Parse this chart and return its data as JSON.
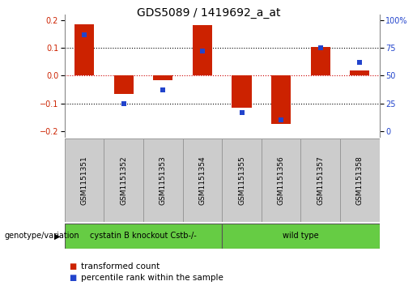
{
  "title": "GDS5089 / 1419692_a_at",
  "samples": [
    "GSM1151351",
    "GSM1151352",
    "GSM1151353",
    "GSM1151354",
    "GSM1151355",
    "GSM1151356",
    "GSM1151357",
    "GSM1151358"
  ],
  "red_values": [
    0.185,
    -0.065,
    -0.015,
    0.182,
    -0.115,
    -0.175,
    0.103,
    0.02
  ],
  "blue_percentile": [
    87,
    25,
    37,
    72,
    17,
    10,
    75,
    62
  ],
  "ylim": [
    -0.22,
    0.22
  ],
  "yticks_left": [
    -0.2,
    -0.1,
    0.0,
    0.1,
    0.2
  ],
  "yticks_right_vals": [
    -0.2,
    -0.1,
    0.0,
    0.1,
    0.2
  ],
  "yticks_right_labels": [
    "0",
    "25",
    "50",
    "75",
    "100%"
  ],
  "group1_label": "cystatin B knockout Cstb-/-",
  "group2_label": "wild type",
  "legend_red": "transformed count",
  "legend_blue": "percentile rank within the sample",
  "genotype_label": "genotype/variation",
  "bar_width": 0.5,
  "red_color": "#cc2200",
  "blue_color": "#2244cc",
  "green_color": "#66cc44",
  "group_box_color": "#cccccc",
  "zero_line_color": "#cc0000",
  "grid_color": "#000000",
  "title_fontsize": 10,
  "tick_fontsize": 7,
  "legend_fontsize": 7.5
}
